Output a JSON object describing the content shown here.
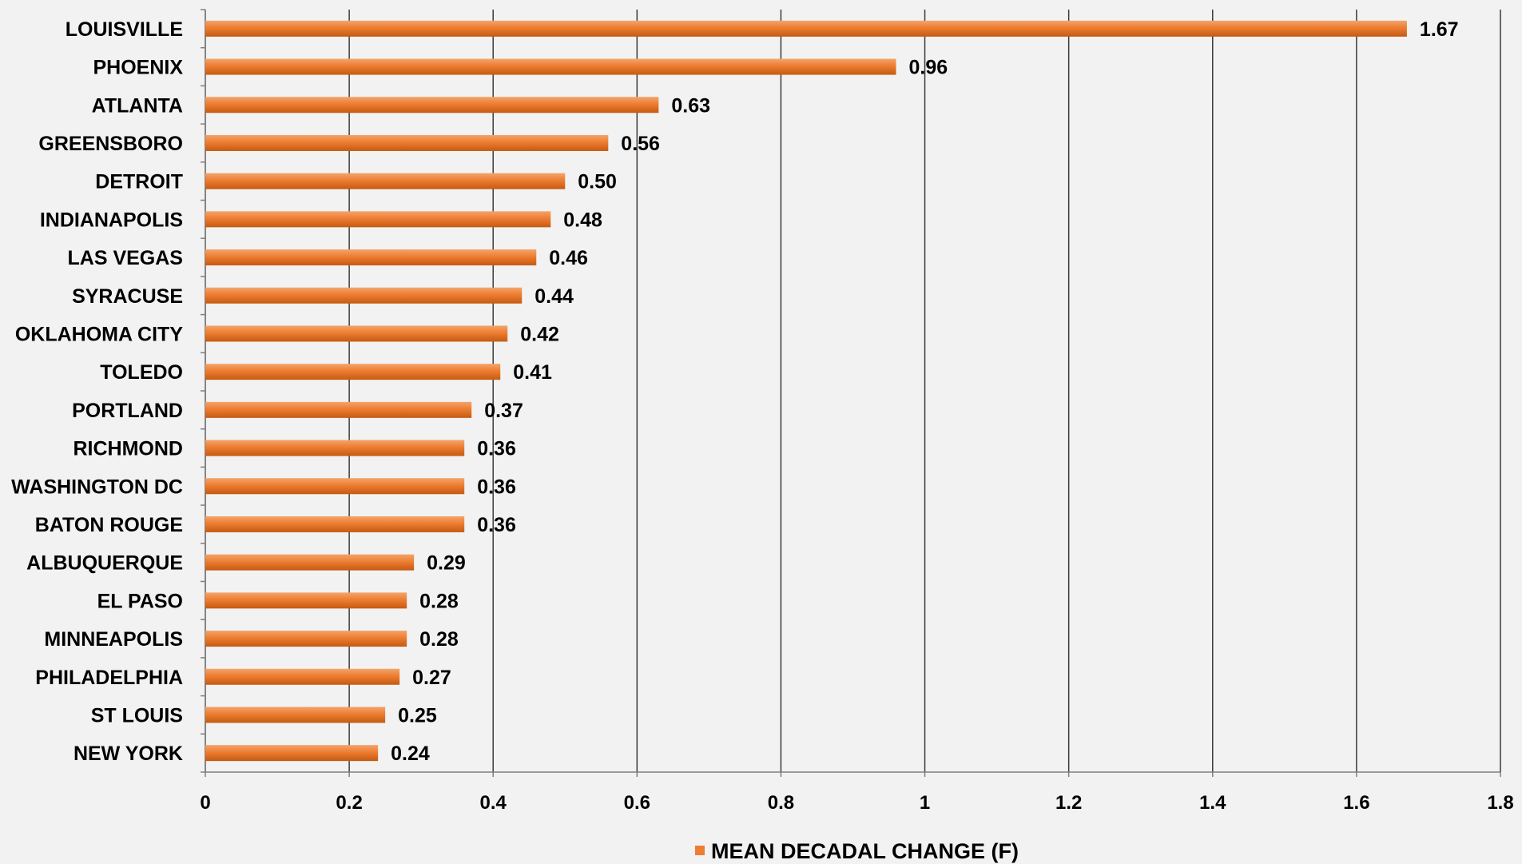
{
  "chart_data": {
    "type": "bar",
    "orientation": "horizontal",
    "categories": [
      "LOUISVILLE",
      "PHOENIX",
      "ATLANTA",
      "GREENSBORO",
      "DETROIT",
      "INDIANAPOLIS",
      "LAS VEGAS",
      "SYRACUSE",
      "OKLAHOMA CITY",
      "TOLEDO",
      "PORTLAND",
      "RICHMOND",
      "WASHINGTON DC",
      "BATON ROUGE",
      "ALBUQUERQUE",
      "EL PASO",
      "MINNEAPOLIS",
      "PHILADELPHIA",
      "ST LOUIS",
      "NEW YORK"
    ],
    "series": [
      {
        "name": "MEAN DECADAL CHANGE (F)",
        "values": [
          1.67,
          0.96,
          0.63,
          0.56,
          0.5,
          0.48,
          0.46,
          0.44,
          0.42,
          0.41,
          0.37,
          0.36,
          0.36,
          0.36,
          0.29,
          0.28,
          0.28,
          0.27,
          0.25,
          0.24
        ],
        "value_labels": [
          "1.67",
          "0.96",
          "0.63",
          "0.56",
          "0.50",
          "0.48",
          "0.46",
          "0.44",
          "0.42",
          "0.41",
          "0.37",
          "0.36",
          "0.36",
          "0.36",
          "0.29",
          "0.28",
          "0.28",
          "0.27",
          "0.25",
          "0.24"
        ],
        "color": "#ed7d31"
      }
    ],
    "xlim": [
      0,
      1.8
    ],
    "xticks": [
      "0",
      "0.2",
      "0.4",
      "0.6",
      "0.8",
      "1",
      "1.2",
      "1.4",
      "1.6",
      "1.8"
    ],
    "grid": true,
    "legend": "bottom",
    "title": "",
    "xlabel": "",
    "ylabel": ""
  },
  "legend": {
    "label": "MEAN DECADAL CHANGE (F)"
  },
  "colors": {
    "bar": "#ed7d31",
    "bar_highlight": "#f4a46b",
    "bar_shadow": "#c55a11",
    "gridline": "#3a3a3a",
    "background": "#f2f2f2"
  }
}
